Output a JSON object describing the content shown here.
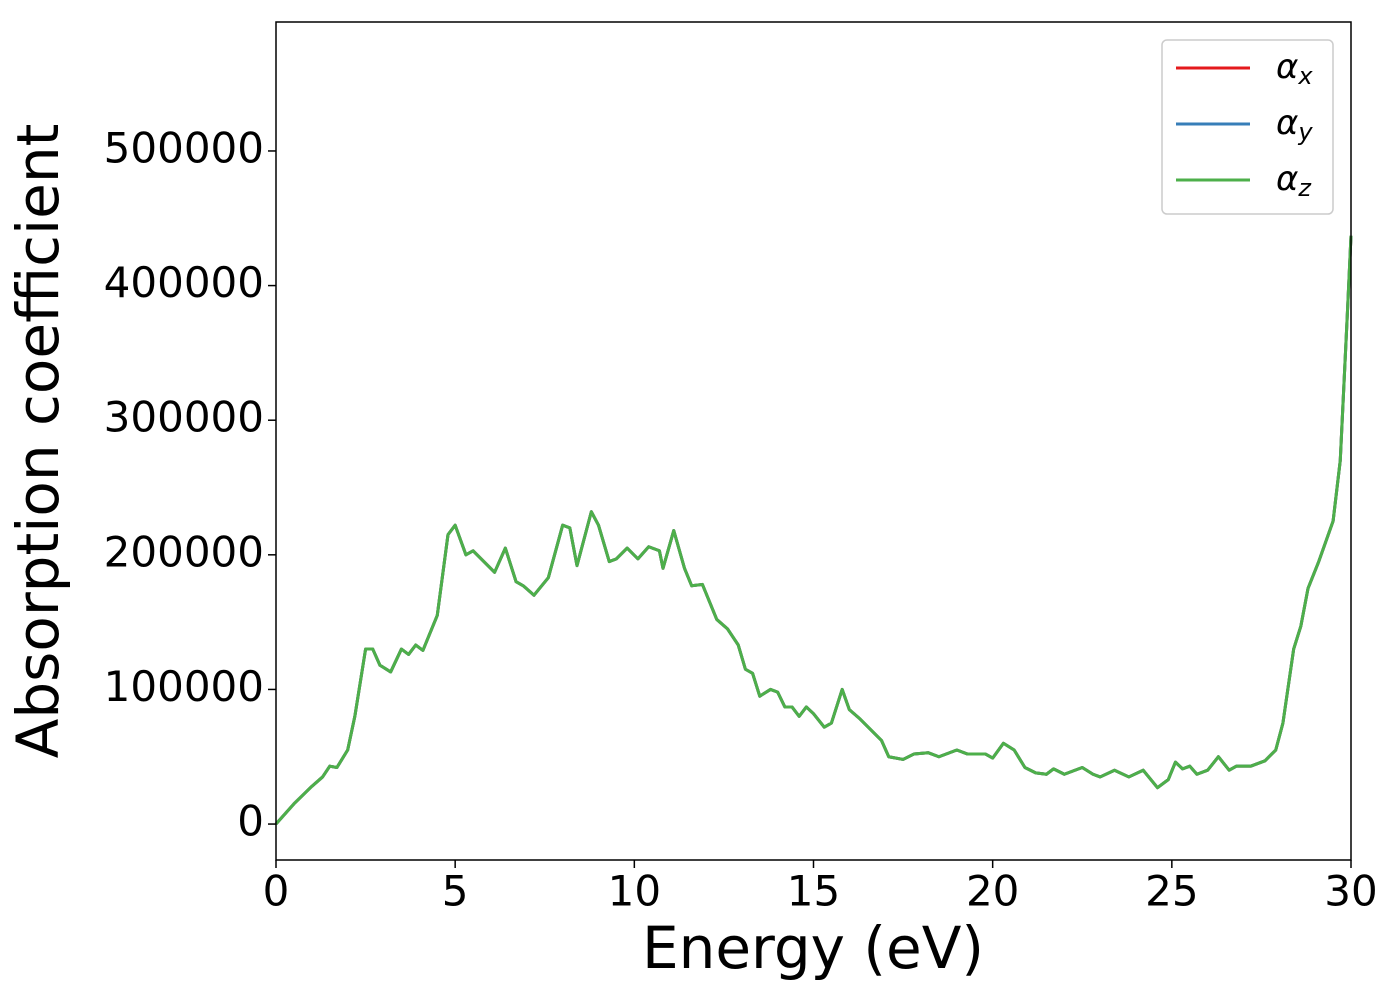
{
  "chart_data": {
    "type": "line",
    "xlabel": "Energy (eV)",
    "ylabel": "Absorption coefficient",
    "x": [
      0,
      0.5,
      1,
      1.3,
      1.5,
      1.7,
      2,
      2.2,
      2.5,
      2.7,
      2.9,
      3.2,
      3.5,
      3.7,
      3.9,
      4.1,
      4.5,
      4.8,
      5.0,
      5.3,
      5.5,
      5.8,
      6.1,
      6.4,
      6.7,
      6.9,
      7.2,
      7.6,
      8.0,
      8.2,
      8.4,
      8.8,
      9.0,
      9.3,
      9.5,
      9.8,
      10.1,
      10.4,
      10.7,
      10.8,
      11.1,
      11.4,
      11.6,
      11.9,
      12.3,
      12.6,
      12.9,
      13.1,
      13.3,
      13.5,
      13.8,
      14.0,
      14.2,
      14.4,
      14.6,
      14.8,
      15.0,
      15.3,
      15.5,
      15.8,
      16.0,
      16.3,
      16.6,
      16.9,
      17.1,
      17.5,
      17.8,
      18.2,
      18.5,
      19.0,
      19.3,
      19.8,
      20.0,
      20.3,
      20.6,
      20.9,
      21.2,
      21.5,
      21.7,
      22.0,
      22.5,
      22.8,
      23.0,
      23.4,
      23.8,
      24.2,
      24.6,
      24.9,
      25.1,
      25.3,
      25.5,
      25.7,
      26.0,
      26.3,
      26.6,
      26.8,
      27.2,
      27.6,
      27.9,
      28.1,
      28.4,
      28.6,
      28.8,
      29.1,
      29.5,
      29.7,
      29.9,
      30.0
    ],
    "series": [
      {
        "name": "αx",
        "color": "#e41a1c",
        "values": [
          0,
          15000,
          28000,
          35000,
          43000,
          42000,
          55000,
          80000,
          130000,
          130000,
          118000,
          113000,
          130000,
          126000,
          133000,
          129000,
          155000,
          215000,
          222000,
          200000,
          203000,
          195000,
          187000,
          205000,
          180000,
          177000,
          170000,
          183000,
          222000,
          220000,
          192000,
          232000,
          222000,
          195000,
          197000,
          205000,
          197000,
          206000,
          203000,
          190000,
          218000,
          190000,
          177000,
          178000,
          152000,
          145000,
          133000,
          115000,
          112000,
          95000,
          100000,
          98000,
          87000,
          87000,
          80000,
          87000,
          82000,
          72000,
          75000,
          100000,
          85000,
          78000,
          70000,
          62000,
          50000,
          48000,
          52000,
          53000,
          50000,
          55000,
          52000,
          52000,
          49000,
          60000,
          55000,
          42000,
          38000,
          37000,
          41000,
          37000,
          42000,
          37000,
          35000,
          40000,
          35000,
          40000,
          27000,
          33000,
          46000,
          41000,
          43000,
          37000,
          40000,
          50000,
          40000,
          43000,
          43000,
          47000,
          55000,
          75000,
          130000,
          147000,
          175000,
          195000,
          225000,
          270000,
          380000,
          437000
        ]
      },
      {
        "name": "αy",
        "color": "#377eb8",
        "values": [
          0,
          15000,
          28000,
          35000,
          43000,
          42000,
          55000,
          80000,
          130000,
          130000,
          118000,
          113000,
          130000,
          126000,
          133000,
          129000,
          155000,
          215000,
          222000,
          200000,
          203000,
          195000,
          187000,
          205000,
          180000,
          177000,
          170000,
          183000,
          222000,
          220000,
          192000,
          232000,
          222000,
          195000,
          197000,
          205000,
          197000,
          206000,
          203000,
          190000,
          218000,
          190000,
          177000,
          178000,
          152000,
          145000,
          133000,
          115000,
          112000,
          95000,
          100000,
          98000,
          87000,
          87000,
          80000,
          87000,
          82000,
          72000,
          75000,
          100000,
          85000,
          78000,
          70000,
          62000,
          50000,
          48000,
          52000,
          53000,
          50000,
          55000,
          52000,
          52000,
          49000,
          60000,
          55000,
          42000,
          38000,
          37000,
          41000,
          37000,
          42000,
          37000,
          35000,
          40000,
          35000,
          40000,
          27000,
          33000,
          46000,
          41000,
          43000,
          37000,
          40000,
          50000,
          40000,
          43000,
          43000,
          47000,
          55000,
          75000,
          130000,
          147000,
          175000,
          195000,
          225000,
          270000,
          380000,
          437000
        ]
      },
      {
        "name": "αz",
        "color": "#4daf4a",
        "values": [
          0,
          15000,
          28000,
          35000,
          43000,
          42000,
          55000,
          80000,
          130000,
          130000,
          118000,
          113000,
          130000,
          126000,
          133000,
          129000,
          155000,
          215000,
          222000,
          200000,
          203000,
          195000,
          187000,
          205000,
          180000,
          177000,
          170000,
          183000,
          222000,
          220000,
          192000,
          232000,
          222000,
          195000,
          197000,
          205000,
          197000,
          206000,
          203000,
          190000,
          218000,
          190000,
          177000,
          178000,
          152000,
          145000,
          133000,
          115000,
          112000,
          95000,
          100000,
          98000,
          87000,
          87000,
          80000,
          87000,
          82000,
          72000,
          75000,
          100000,
          85000,
          78000,
          70000,
          62000,
          50000,
          48000,
          52000,
          53000,
          50000,
          55000,
          52000,
          52000,
          49000,
          60000,
          55000,
          42000,
          38000,
          37000,
          41000,
          37000,
          42000,
          37000,
          35000,
          40000,
          35000,
          40000,
          27000,
          33000,
          46000,
          41000,
          43000,
          37000,
          40000,
          50000,
          40000,
          43000,
          43000,
          47000,
          55000,
          75000,
          130000,
          147000,
          175000,
          195000,
          225000,
          270000,
          380000,
          437000
        ]
      }
    ],
    "xlim": [
      0,
      30
    ],
    "xticks": [
      0,
      5,
      10,
      15,
      20,
      25,
      30
    ],
    "ylim": [
      -26700,
      595800
    ],
    "yticks": [
      0,
      100000,
      200000,
      300000,
      400000,
      500000
    ],
    "grid": false,
    "legend": "upper right"
  }
}
